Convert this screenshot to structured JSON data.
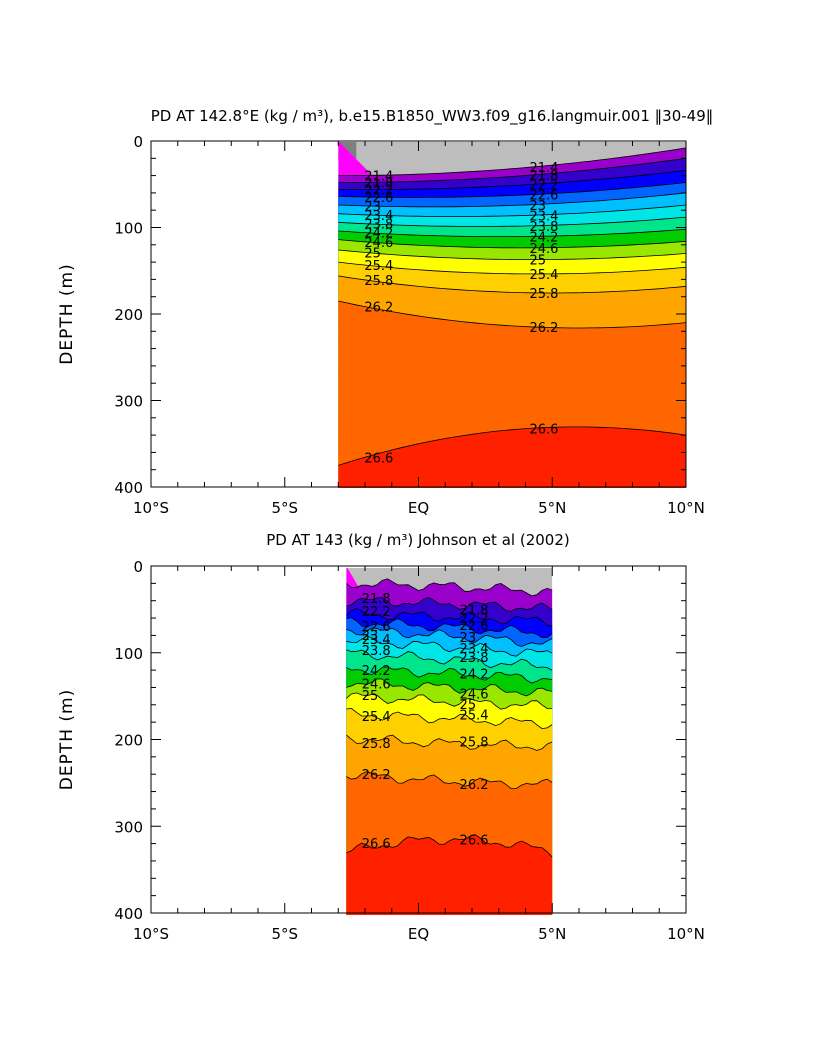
{
  "chart_data": [
    {
      "type": "heatmap",
      "subtype": "filled-contour",
      "title": "PD AT 142.8°E (kg / m³), b.e15.B1850_WW3.f09_g16.langmuir.001 ‖30-49‖",
      "ylabel": "DEPTH (m)",
      "xlabel": "",
      "x_ticks": [
        "10°S",
        "5°S",
        "EQ",
        "5°N",
        "10°N"
      ],
      "x_tick_values": [
        -10,
        -5,
        0,
        5,
        10
      ],
      "xlim": [
        -10,
        10
      ],
      "y_ticks": [
        "0",
        "100",
        "200",
        "300",
        "400"
      ],
      "y_tick_values": [
        0,
        100,
        200,
        300,
        400
      ],
      "ylim": [
        400,
        0
      ],
      "data_x_range": [
        -3,
        10
      ],
      "contour_levels": [
        21.4,
        21.8,
        22.2,
        22.6,
        23,
        23.4,
        23.8,
        24.2,
        24.6,
        25,
        25.4,
        25.8,
        26.2,
        26.6
      ],
      "contour_labels": [
        "21.4",
        "21.8",
        "22.2",
        "22.6",
        "23",
        "23.4",
        "23.8",
        "24.2",
        "24.6",
        "25",
        "25.4",
        "25.8",
        "26.2",
        "26.6"
      ],
      "isopycnal_depth_west_m": [
        40,
        48,
        56,
        64,
        74,
        84,
        94,
        104,
        114,
        126,
        140,
        156,
        185,
        375
      ],
      "isopycnal_depth_center_m": [
        40,
        48,
        58,
        70,
        82,
        94,
        106,
        118,
        132,
        146,
        164,
        188,
        230,
        310
      ],
      "isopycnal_depth_east_m": [
        8,
        20,
        34,
        48,
        60,
        74,
        88,
        102,
        116,
        130,
        146,
        168,
        210,
        340
      ],
      "grid": false,
      "legend": "none"
    },
    {
      "type": "heatmap",
      "subtype": "filled-contour",
      "title": "PD AT 143 (kg / m³) Johnson et al (2002)",
      "ylabel": "DEPTH (m)",
      "xlabel": "",
      "x_ticks": [
        "10°S",
        "5°S",
        "EQ",
        "5°N",
        "10°N"
      ],
      "x_tick_values": [
        -10,
        -5,
        0,
        5,
        10
      ],
      "xlim": [
        -10,
        10
      ],
      "y_ticks": [
        "0",
        "100",
        "200",
        "300",
        "400"
      ],
      "y_tick_values": [
        0,
        100,
        200,
        300,
        400
      ],
      "ylim": [
        400,
        0
      ],
      "data_x_range": [
        -2.7,
        5
      ],
      "contour_levels": [
        21.4,
        21.8,
        22.2,
        22.6,
        23,
        23.4,
        23.8,
        24.2,
        24.6,
        25,
        25.4,
        25.8,
        26.2,
        26.6
      ],
      "contour_labels": [
        "21.8",
        "22.2",
        "22.6",
        "23",
        "23.4",
        "23.8",
        "24.2",
        "24.6",
        "25",
        "25.4",
        "25.8",
        "26.2",
        "26.6"
      ],
      "isopycnal_depth_west_m": [
        20,
        40,
        55,
        64,
        73,
        86,
        100,
        118,
        134,
        150,
        170,
        198,
        240,
        330
      ],
      "isopycnal_depth_center_m": [
        22,
        42,
        58,
        70,
        80,
        92,
        108,
        124,
        140,
        156,
        176,
        206,
        250,
        300
      ],
      "isopycnal_depth_east_m": [
        30,
        50,
        64,
        78,
        90,
        102,
        116,
        130,
        146,
        162,
        182,
        208,
        252,
        330
      ],
      "grid": false,
      "legend": "none"
    }
  ],
  "colors": {
    "missing": "#bdbdbd",
    "missing_dark": "#7f7f7f",
    "ramp": [
      "#ff00ff",
      "#d400e6",
      "#9900cc",
      "#3300cc",
      "#0000ff",
      "#0066ff",
      "#00bfff",
      "#00e5e5",
      "#00e58c",
      "#00cc00",
      "#99e600",
      "#ffff00",
      "#ffd000",
      "#ffa500",
      "#ff6600",
      "#ff2000",
      "#dd0000",
      "#c00000"
    ]
  }
}
